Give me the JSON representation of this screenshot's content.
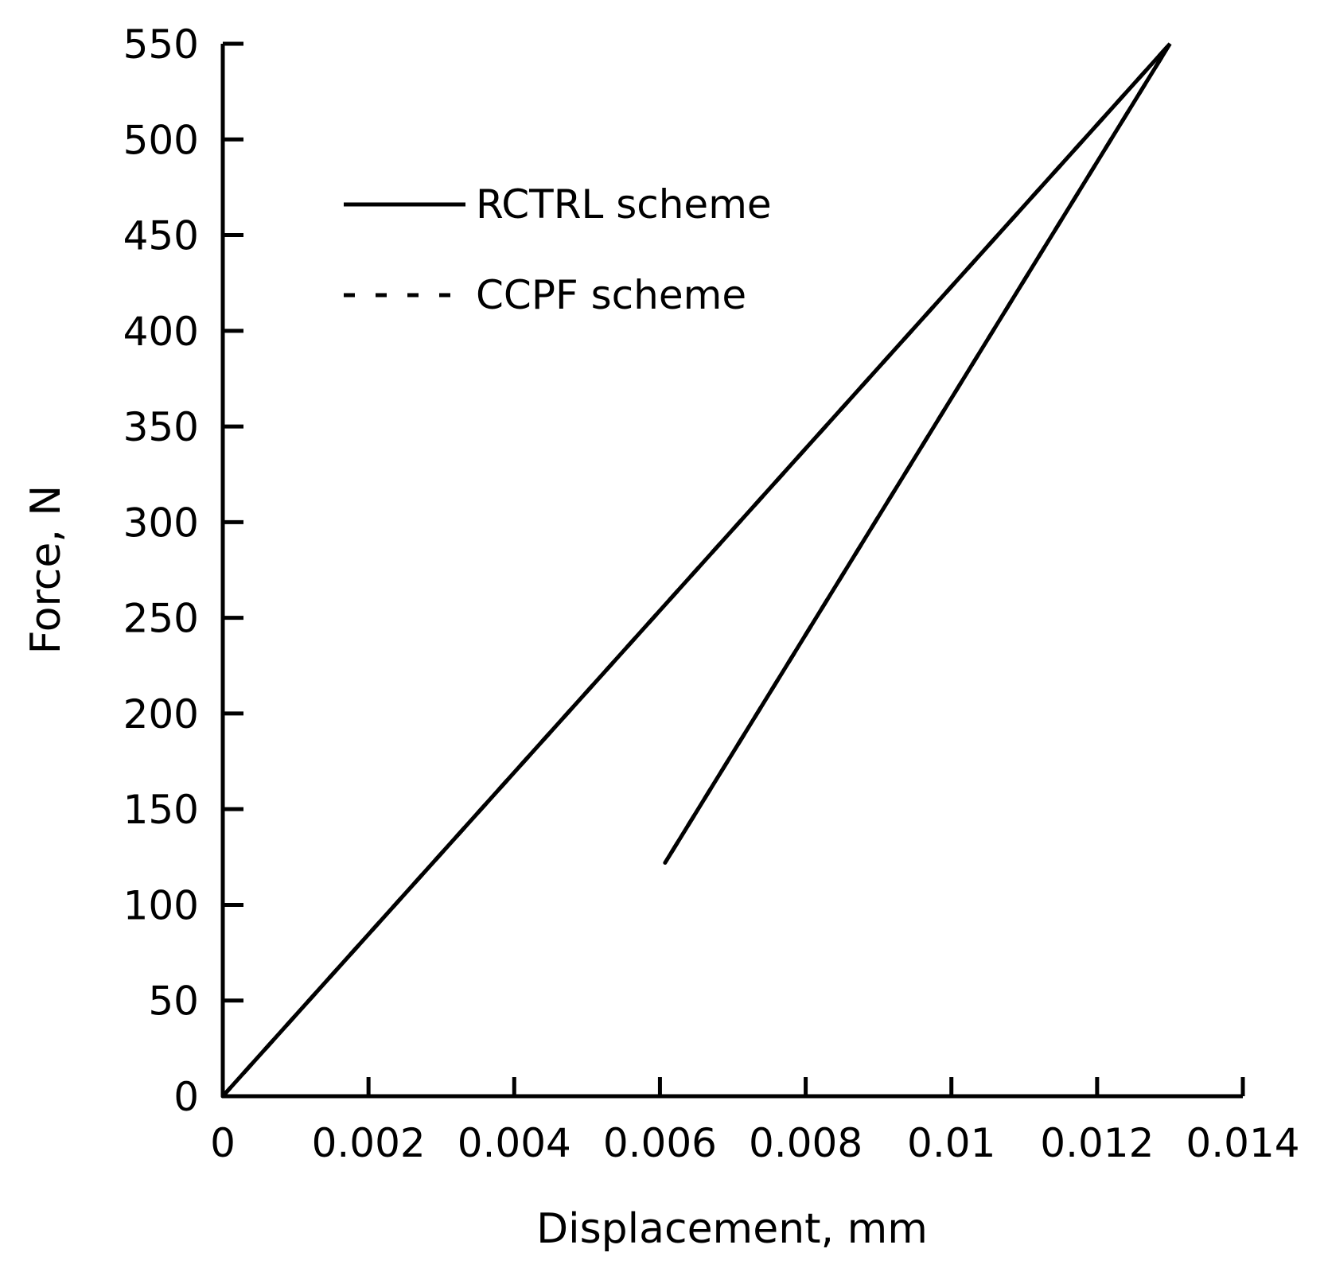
{
  "chart_data": {
    "type": "line",
    "xlabel": "Displacement, mm",
    "ylabel": "Force, N",
    "xlim": [
      0,
      0.014
    ],
    "ylim": [
      0,
      550
    ],
    "xticks": [
      {
        "value": 0,
        "label": "0"
      },
      {
        "value": 0.002,
        "label": "0.002"
      },
      {
        "value": 0.004,
        "label": "0.004"
      },
      {
        "value": 0.006,
        "label": "0.006"
      },
      {
        "value": 0.008,
        "label": "0.008"
      },
      {
        "value": 0.01,
        "label": "0.01"
      },
      {
        "value": 0.012,
        "label": "0.012"
      },
      {
        "value": 0.014,
        "label": "0.014"
      }
    ],
    "yticks": [
      {
        "value": 0,
        "label": "0"
      },
      {
        "value": 50,
        "label": "50"
      },
      {
        "value": 100,
        "label": "100"
      },
      {
        "value": 150,
        "label": "150"
      },
      {
        "value": 200,
        "label": "200"
      },
      {
        "value": 250,
        "label": "250"
      },
      {
        "value": 300,
        "label": "300"
      },
      {
        "value": 350,
        "label": "350"
      },
      {
        "value": 400,
        "label": "400"
      },
      {
        "value": 450,
        "label": "450"
      },
      {
        "value": 500,
        "label": "500"
      },
      {
        "value": 550,
        "label": "550"
      }
    ],
    "grid": false,
    "legend_position": "top-left",
    "series": [
      {
        "name": "RCTRL scheme",
        "style": "solid",
        "color": "#000000",
        "x": [
          0,
          0.013,
          0.00607
        ],
        "y": [
          0,
          550,
          122
        ]
      },
      {
        "name": "CCPF scheme",
        "style": "dashed",
        "color": "#000000",
        "x": [
          0,
          0.013,
          0.00607
        ],
        "y": [
          0,
          550,
          122
        ]
      }
    ]
  }
}
